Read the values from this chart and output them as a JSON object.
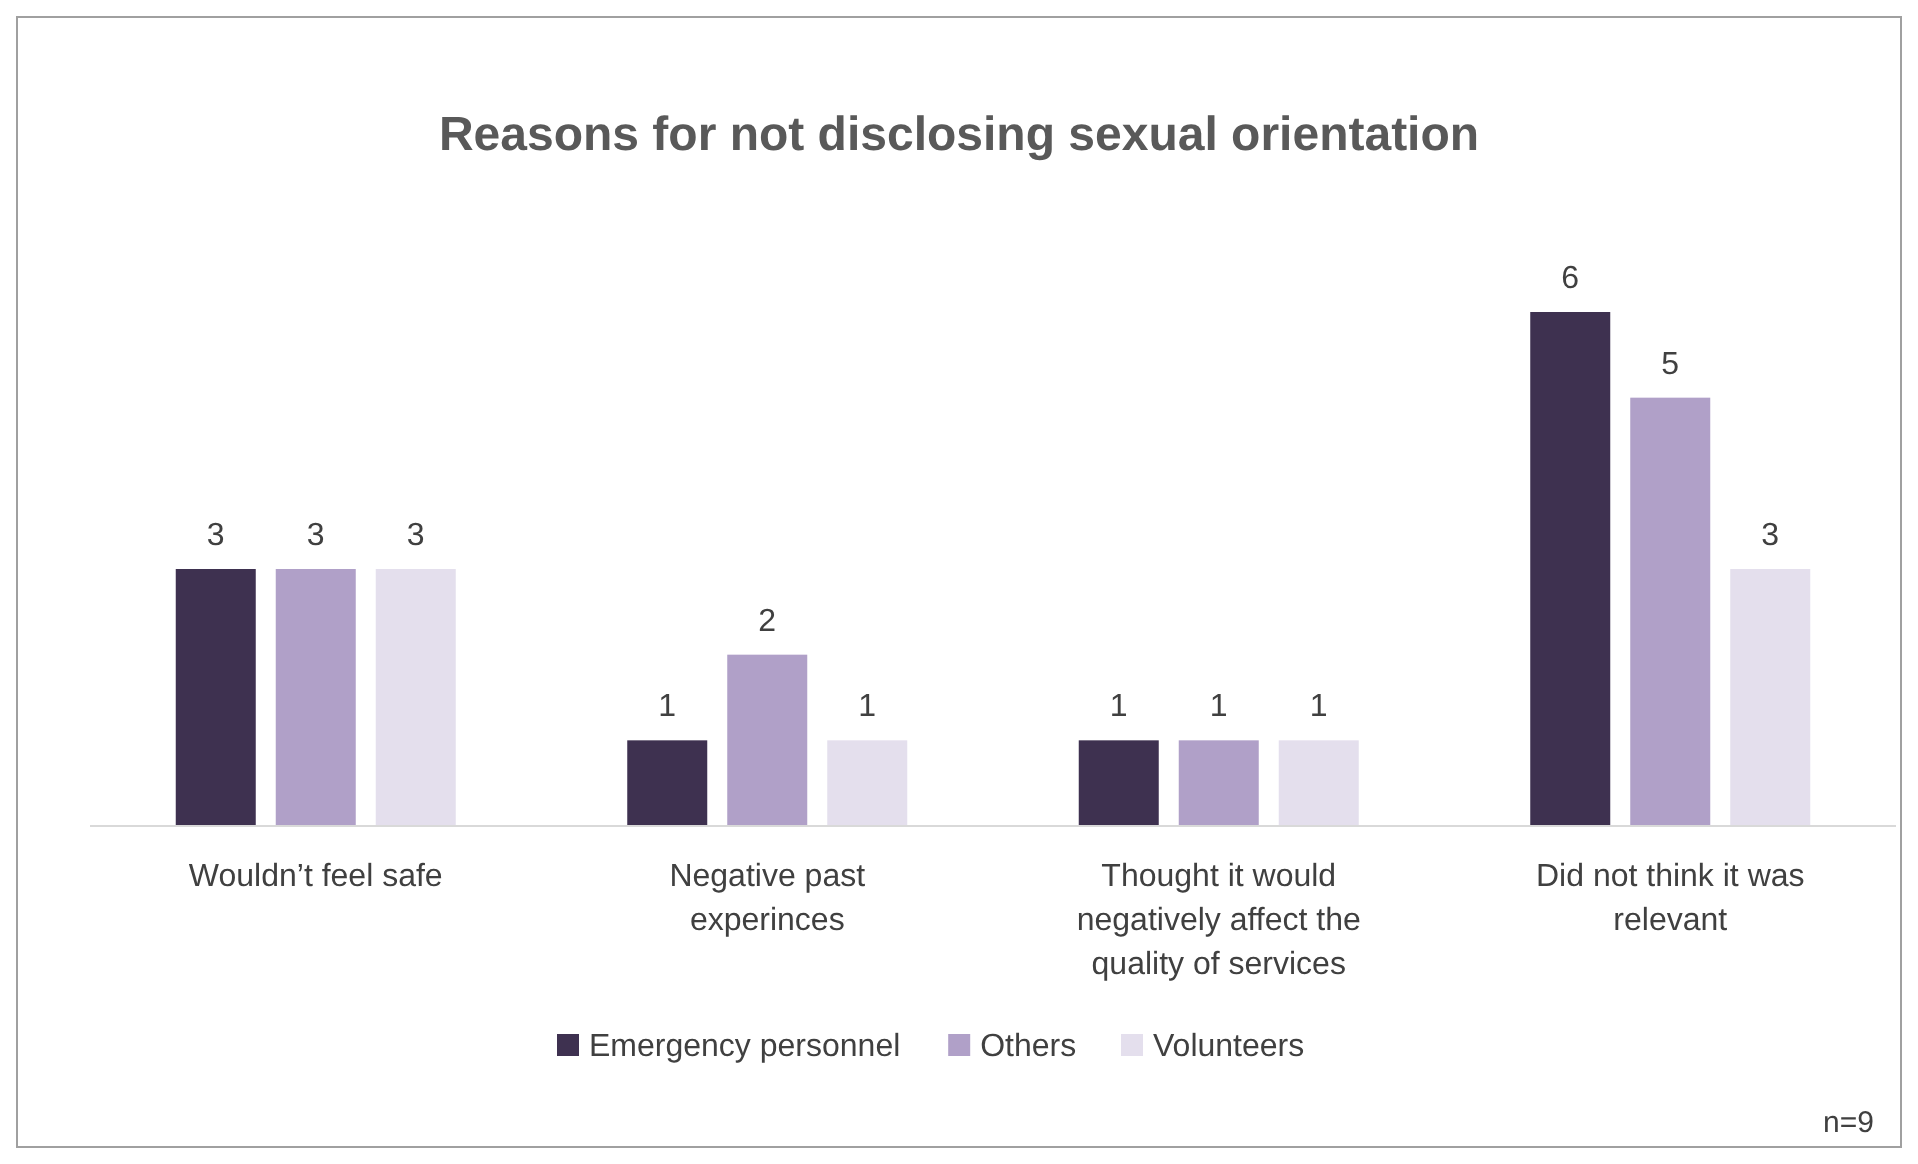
{
  "chart_data": {
    "type": "bar",
    "title": "Reasons for not disclosing sexual orientation",
    "categories": [
      "Wouldn’t feel safe",
      "Negative past experinces",
      "Thought it would negatively affect the quality of services",
      "Did not think it was relevant"
    ],
    "series": [
      {
        "name": "Emergency personnel",
        "color": "#3e3150",
        "values": [
          3,
          1,
          1,
          6
        ]
      },
      {
        "name": "Others",
        "color": "#b0a0c8",
        "values": [
          3,
          2,
          1,
          5
        ]
      },
      {
        "name": "Volunteers",
        "color": "#e4dfed",
        "values": [
          3,
          1,
          1,
          3
        ]
      }
    ],
    "data_labels": true,
    "legend": "bottom",
    "grid": false,
    "annotations": [
      "n=9"
    ]
  }
}
